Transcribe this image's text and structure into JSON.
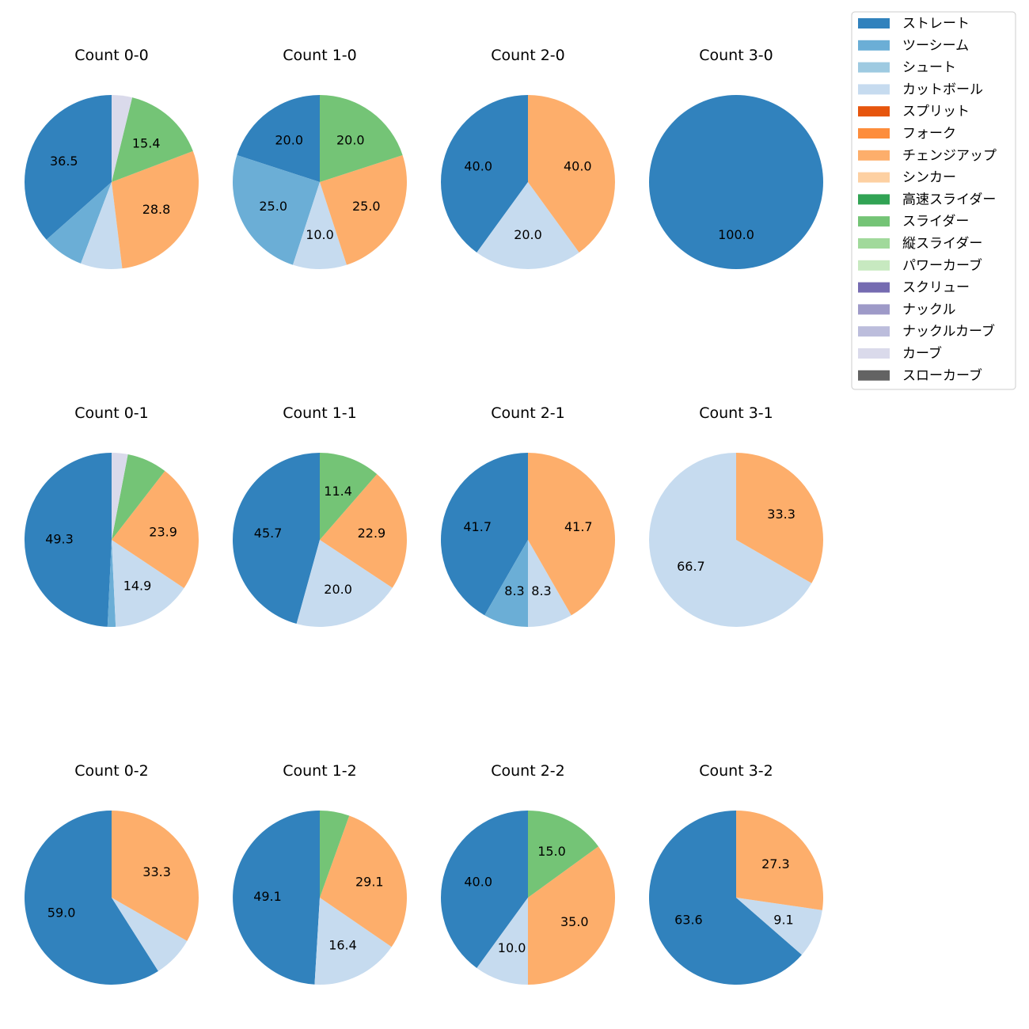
{
  "chart_data": {
    "type": "pie",
    "legend": {
      "placement": "top-right",
      "entries": [
        {
          "name": "ストレート",
          "color": "#3182bd"
        },
        {
          "name": "ツーシーム",
          "color": "#6baed6"
        },
        {
          "name": "シュート",
          "color": "#9ecae1"
        },
        {
          "name": "カットボール",
          "color": "#c6dbef"
        },
        {
          "name": "スプリット",
          "color": "#e6550d"
        },
        {
          "name": "フォーク",
          "color": "#fd8d3c"
        },
        {
          "name": "チェンジアップ",
          "color": "#fdae6b"
        },
        {
          "name": "シンカー",
          "color": "#fdd0a2"
        },
        {
          "name": "高速スライダー",
          "color": "#31a354"
        },
        {
          "name": "スライダー",
          "color": "#74c476"
        },
        {
          "name": "縦スライダー",
          "color": "#a1d99b"
        },
        {
          "name": "パワーカーブ",
          "color": "#c7e9c0"
        },
        {
          "name": "スクリュー",
          "color": "#756bb1"
        },
        {
          "name": "ナックル",
          "color": "#9e9ac8"
        },
        {
          "name": "ナックルカーブ",
          "color": "#bcbddc"
        },
        {
          "name": "カーブ",
          "color": "#dadaeb"
        },
        {
          "name": "スローカーブ",
          "color": "#636363"
        }
      ]
    },
    "pies": [
      {
        "title": "Count 0-0",
        "slices": [
          {
            "pitch": "ストレート",
            "value": 36.5,
            "label": "36.5"
          },
          {
            "pitch": "ツーシーム",
            "value": 7.7,
            "label": ""
          },
          {
            "pitch": "カットボール",
            "value": 7.7,
            "label": ""
          },
          {
            "pitch": "チェンジアップ",
            "value": 28.8,
            "label": "28.8"
          },
          {
            "pitch": "スライダー",
            "value": 15.4,
            "label": "15.4"
          },
          {
            "pitch": "カーブ",
            "value": 3.8,
            "label": ""
          }
        ]
      },
      {
        "title": "Count 1-0",
        "slices": [
          {
            "pitch": "ストレート",
            "value": 20.0,
            "label": "20.0"
          },
          {
            "pitch": "ツーシーム",
            "value": 25.0,
            "label": "25.0"
          },
          {
            "pitch": "カットボール",
            "value": 10.0,
            "label": "10.0"
          },
          {
            "pitch": "チェンジアップ",
            "value": 25.0,
            "label": "25.0"
          },
          {
            "pitch": "スライダー",
            "value": 20.0,
            "label": "20.0"
          }
        ]
      },
      {
        "title": "Count 2-0",
        "slices": [
          {
            "pitch": "ストレート",
            "value": 40.0,
            "label": "40.0"
          },
          {
            "pitch": "カットボール",
            "value": 20.0,
            "label": "20.0"
          },
          {
            "pitch": "チェンジアップ",
            "value": 40.0,
            "label": "40.0"
          }
        ]
      },
      {
        "title": "Count 3-0",
        "slices": [
          {
            "pitch": "ストレート",
            "value": 100.0,
            "label": "100.0"
          }
        ]
      },
      {
        "title": "Count 0-1",
        "slices": [
          {
            "pitch": "ストレート",
            "value": 49.3,
            "label": "49.3"
          },
          {
            "pitch": "ツーシーム",
            "value": 1.5,
            "label": ""
          },
          {
            "pitch": "カットボール",
            "value": 14.9,
            "label": "14.9"
          },
          {
            "pitch": "チェンジアップ",
            "value": 23.9,
            "label": "23.9"
          },
          {
            "pitch": "スライダー",
            "value": 7.5,
            "label": ""
          },
          {
            "pitch": "カーブ",
            "value": 3.0,
            "label": ""
          }
        ]
      },
      {
        "title": "Count 1-1",
        "slices": [
          {
            "pitch": "ストレート",
            "value": 45.7,
            "label": "45.7"
          },
          {
            "pitch": "カットボール",
            "value": 20.0,
            "label": "20.0"
          },
          {
            "pitch": "チェンジアップ",
            "value": 22.9,
            "label": "22.9"
          },
          {
            "pitch": "スライダー",
            "value": 11.4,
            "label": "11.4"
          }
        ]
      },
      {
        "title": "Count 2-1",
        "slices": [
          {
            "pitch": "ストレート",
            "value": 41.7,
            "label": "41.7"
          },
          {
            "pitch": "ツーシーム",
            "value": 8.3,
            "label": "8.3"
          },
          {
            "pitch": "カットボール",
            "value": 8.3,
            "label": "8.3"
          },
          {
            "pitch": "チェンジアップ",
            "value": 41.7,
            "label": "41.7"
          }
        ]
      },
      {
        "title": "Count 3-1",
        "slices": [
          {
            "pitch": "カットボール",
            "value": 66.7,
            "label": "66.7"
          },
          {
            "pitch": "チェンジアップ",
            "value": 33.3,
            "label": "33.3"
          }
        ]
      },
      {
        "title": "Count 0-2",
        "slices": [
          {
            "pitch": "ストレート",
            "value": 59.0,
            "label": "59.0"
          },
          {
            "pitch": "カットボール",
            "value": 7.7,
            "label": ""
          },
          {
            "pitch": "チェンジアップ",
            "value": 33.3,
            "label": "33.3"
          }
        ]
      },
      {
        "title": "Count 1-2",
        "slices": [
          {
            "pitch": "ストレート",
            "value": 49.1,
            "label": "49.1"
          },
          {
            "pitch": "カットボール",
            "value": 16.4,
            "label": "16.4"
          },
          {
            "pitch": "チェンジアップ",
            "value": 29.1,
            "label": "29.1"
          },
          {
            "pitch": "スライダー",
            "value": 5.5,
            "label": ""
          }
        ]
      },
      {
        "title": "Count 2-2",
        "slices": [
          {
            "pitch": "ストレート",
            "value": 40.0,
            "label": "40.0"
          },
          {
            "pitch": "カットボール",
            "value": 10.0,
            "label": "10.0"
          },
          {
            "pitch": "チェンジアップ",
            "value": 35.0,
            "label": "35.0"
          },
          {
            "pitch": "スライダー",
            "value": 15.0,
            "label": "15.0"
          }
        ]
      },
      {
        "title": "Count 3-2",
        "slices": [
          {
            "pitch": "ストレート",
            "value": 63.6,
            "label": "63.6"
          },
          {
            "pitch": "カットボール",
            "value": 9.1,
            "label": "9.1"
          },
          {
            "pitch": "チェンジアップ",
            "value": 27.3,
            "label": "27.3"
          }
        ]
      }
    ]
  }
}
